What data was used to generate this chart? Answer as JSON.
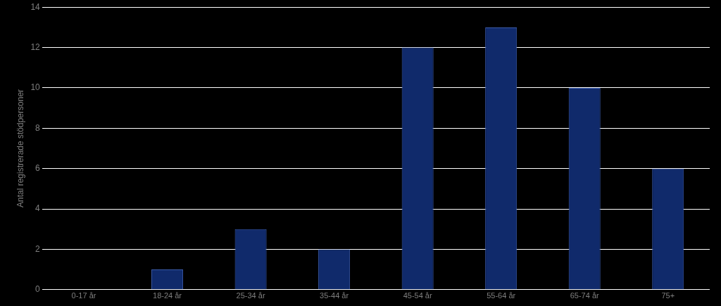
{
  "chart_data": {
    "type": "bar",
    "ylabel": "Antal registrerade stödpersoner",
    "categories": [
      "0-17 år",
      "18-24 år",
      "25-34 år",
      "35-44 år",
      "45-54 år",
      "55-64 år",
      "65-74 år",
      "75+"
    ],
    "values": [
      0,
      1,
      3,
      2,
      12,
      13,
      10,
      6
    ],
    "color": "#102a6b",
    "ylim": [
      0,
      14
    ],
    "yticks": [
      0,
      2,
      4,
      6,
      8,
      10,
      12,
      14
    ],
    "grid": "y",
    "legend": false
  }
}
